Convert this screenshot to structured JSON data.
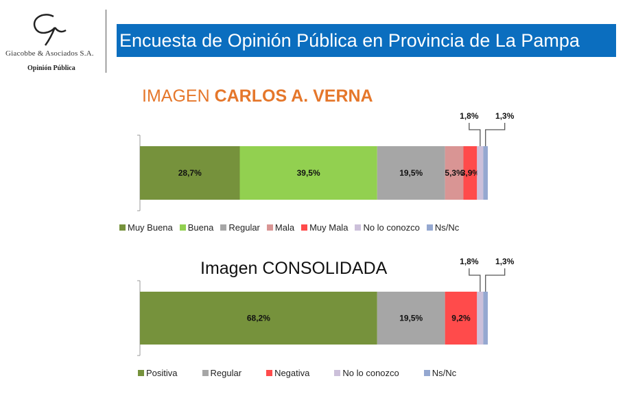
{
  "header": {
    "logo_text": "Giacobbe & Asociados S.A.",
    "logo_subtitle": "Opinión Pública",
    "banner": "Encuesta de Opinión Pública en Provincia de La Pampa"
  },
  "chart_data": [
    {
      "type": "bar",
      "stacked": true,
      "orientation": "horizontal",
      "title_prefix": "IMAGEN",
      "title_bold": "CARLOS A. VERNA",
      "series": [
        {
          "name": "Muy Buena",
          "value": 28.7,
          "label": "28,7%",
          "color": "#76923c"
        },
        {
          "name": "Buena",
          "value": 39.5,
          "label": "39,5%",
          "color": "#92d050"
        },
        {
          "name": "Regular",
          "value": 19.5,
          "label": "19,5%",
          "color": "#a6a6a6"
        },
        {
          "name": "Mala",
          "value": 5.3,
          "label": "5,3%",
          "color": "#d99594"
        },
        {
          "name": "Muy Mala",
          "value": 3.9,
          "label": "3,9%",
          "color": "#ff4b4b"
        },
        {
          "name": "No lo conozco",
          "value": 1.8,
          "label": "1,8%",
          "color": "#ccc0da"
        },
        {
          "name": "Ns/Nc",
          "value": 1.3,
          "label": "1,3%",
          "color": "#95a8d0"
        }
      ],
      "xlim": [
        0,
        100
      ]
    },
    {
      "type": "bar",
      "stacked": true,
      "orientation": "horizontal",
      "title": "Imagen CONSOLIDADA",
      "series": [
        {
          "name": "Positiva",
          "value": 68.2,
          "label": "68,2%",
          "color": "#76923c"
        },
        {
          "name": "Regular",
          "value": 19.5,
          "label": "19,5%",
          "color": "#a6a6a6"
        },
        {
          "name": "Negativa",
          "value": 9.2,
          "label": "9,2%",
          "color": "#ff4b4b"
        },
        {
          "name": "No lo conozco",
          "value": 1.8,
          "label": "1,8%",
          "color": "#ccc0da"
        },
        {
          "name": "Ns/Nc",
          "value": 1.3,
          "label": "1,3%",
          "color": "#95a8d0"
        }
      ],
      "xlim": [
        0,
        100
      ]
    }
  ]
}
